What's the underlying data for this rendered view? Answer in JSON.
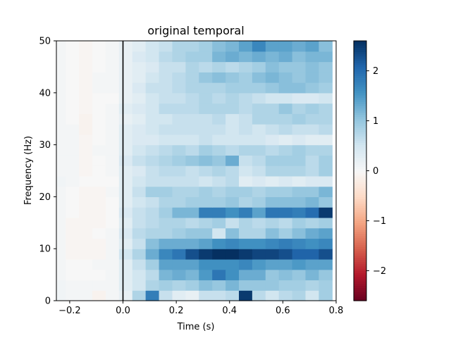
{
  "chart_data": {
    "type": "heatmap",
    "title": "original temporal",
    "xlabel": "Time (s)",
    "ylabel": "Frequency (Hz)",
    "xlim": [
      -0.25,
      0.8
    ],
    "ylim": [
      0,
      50
    ],
    "x_ticks": [
      -0.2,
      0.0,
      0.2,
      0.4,
      0.6,
      0.8
    ],
    "x_tick_labels": [
      "−0.2",
      "0.0",
      "0.2",
      "0.4",
      "0.6",
      "0.8"
    ],
    "y_ticks": [
      0,
      10,
      20,
      30,
      40,
      50
    ],
    "y_tick_labels": [
      "0",
      "10",
      "20",
      "30",
      "40",
      "50"
    ],
    "vline_at": 0.0,
    "colormap": "RdBu_r",
    "vmin": -2.6,
    "vmax": 2.6,
    "colorbar_ticks": [
      -2,
      -1,
      0,
      1,
      2
    ],
    "colorbar_tick_labels": [
      "−2",
      "−1",
      "0",
      "1",
      "2"
    ],
    "x_centers": [
      -0.24,
      -0.19,
      -0.14,
      -0.09,
      -0.04,
      0.01,
      0.06,
      0.11,
      0.16,
      0.21,
      0.26,
      0.31,
      0.36,
      0.41,
      0.46,
      0.51,
      0.56,
      0.61,
      0.66,
      0.71,
      0.76
    ],
    "y_centers": [
      1,
      3,
      5,
      7,
      9,
      11,
      13,
      15,
      17,
      19,
      21,
      23,
      25,
      27,
      29,
      31,
      33,
      35,
      37,
      39,
      41,
      43,
      45,
      47,
      49
    ],
    "values": [
      [
        0.1,
        0.05,
        0.05,
        -0.1,
        0.05,
        0.2,
        0.8,
        1.8,
        0.6,
        0.3,
        0.2,
        0.6,
        0.6,
        0.7,
        2.5,
        0.7,
        0.5,
        0.7,
        0.8,
        0.5,
        0.9
      ],
      [
        0.1,
        0.05,
        0.05,
        0.05,
        0.05,
        0.3,
        0.5,
        0.8,
        0.9,
        0.8,
        0.9,
        1.1,
        1.0,
        1.2,
        1.0,
        1.0,
        1.0,
        0.9,
        0.9,
        0.8,
        0.9
      ],
      [
        0.05,
        0.0,
        0.0,
        0.0,
        0.05,
        0.3,
        0.5,
        0.7,
        1.2,
        1.3,
        1.2,
        1.5,
        1.9,
        1.6,
        1.3,
        1.3,
        1.0,
        1.1,
        1.0,
        1.2,
        1.0
      ],
      [
        0.05,
        0.0,
        0.0,
        0.05,
        0.05,
        0.3,
        0.6,
        0.9,
        1.4,
        1.4,
        1.4,
        1.6,
        1.6,
        1.6,
        1.7,
        1.5,
        1.4,
        1.4,
        1.5,
        1.4,
        1.4
      ],
      [
        0.05,
        -0.05,
        -0.05,
        -0.05,
        0.05,
        0.5,
        0.8,
        1.3,
        1.7,
        1.9,
        2.3,
        2.5,
        2.6,
        2.6,
        2.5,
        2.4,
        2.4,
        2.3,
        2.1,
        2.1,
        2.3
      ],
      [
        0.05,
        -0.05,
        -0.05,
        -0.05,
        0.05,
        0.3,
        0.6,
        1.1,
        1.3,
        1.3,
        1.3,
        1.4,
        1.6,
        1.7,
        1.6,
        1.6,
        1.7,
        1.8,
        1.7,
        1.6,
        1.7
      ],
      [
        0.05,
        -0.05,
        -0.05,
        0.0,
        0.05,
        0.4,
        0.7,
        0.8,
        0.8,
        0.9,
        1.0,
        1.0,
        0.5,
        1.1,
        0.8,
        0.8,
        1.1,
        0.9,
        1.1,
        1.3,
        1.4
      ],
      [
        0.05,
        -0.05,
        -0.05,
        -0.05,
        0.0,
        0.3,
        0.6,
        0.7,
        0.8,
        0.8,
        0.7,
        0.8,
        0.9,
        0.6,
        0.8,
        0.7,
        0.8,
        0.7,
        0.9,
        0.8,
        0.9
      ],
      [
        0.05,
        0.0,
        -0.05,
        -0.05,
        0.0,
        0.4,
        0.6,
        0.7,
        0.9,
        1.2,
        1.2,
        1.8,
        1.8,
        1.6,
        1.8,
        1.4,
        1.9,
        1.9,
        1.8,
        2.0,
        2.5
      ],
      [
        0.05,
        0.0,
        -0.05,
        -0.05,
        0.0,
        0.3,
        0.5,
        0.6,
        0.8,
        0.8,
        0.9,
        0.9,
        0.9,
        1.0,
        0.8,
        0.9,
        1.1,
        1.1,
        1.1,
        1.2,
        1.0
      ],
      [
        0.05,
        0.0,
        -0.05,
        -0.05,
        0.05,
        0.3,
        0.6,
        0.9,
        0.9,
        0.8,
        0.8,
        0.9,
        0.8,
        0.9,
        0.9,
        0.8,
        0.9,
        0.9,
        1.0,
        1.0,
        1.2
      ],
      [
        0.1,
        0.05,
        0.0,
        0.0,
        0.0,
        0.3,
        0.5,
        0.6,
        0.6,
        0.6,
        0.6,
        0.5,
        0.6,
        0.7,
        0.3,
        0.4,
        0.3,
        0.4,
        0.3,
        0.4,
        0.4
      ],
      [
        0.05,
        0.05,
        -0.05,
        0.0,
        0.05,
        0.3,
        0.4,
        0.6,
        0.7,
        0.7,
        0.6,
        0.7,
        0.8,
        0.7,
        0.5,
        0.6,
        0.8,
        0.8,
        0.8,
        0.7,
        0.9
      ],
      [
        0.05,
        0.05,
        -0.05,
        0.0,
        0.05,
        0.4,
        0.6,
        0.7,
        0.8,
        0.9,
        1.0,
        1.1,
        1.0,
        1.3,
        0.6,
        0.7,
        0.9,
        0.9,
        0.9,
        0.7,
        0.9
      ],
      [
        0.05,
        0.05,
        -0.05,
        0.05,
        0.05,
        0.3,
        0.5,
        0.6,
        0.7,
        0.8,
        0.7,
        0.9,
        0.8,
        0.7,
        0.8,
        0.8,
        0.7,
        0.8,
        0.9,
        0.8,
        0.8
      ],
      [
        0.05,
        0.05,
        -0.05,
        0.0,
        0.05,
        0.3,
        0.4,
        0.4,
        0.5,
        0.5,
        0.5,
        0.6,
        0.5,
        0.5,
        0.5,
        0.5,
        0.4,
        0.3,
        0.4,
        0.3,
        0.3
      ],
      [
        0.05,
        0.05,
        -0.1,
        0.0,
        0.05,
        0.3,
        0.4,
        0.5,
        0.6,
        0.6,
        0.6,
        0.6,
        0.6,
        0.5,
        0.6,
        0.5,
        0.6,
        0.7,
        0.6,
        0.6,
        0.7
      ],
      [
        0.05,
        0.0,
        -0.1,
        0.0,
        0.05,
        0.2,
        0.3,
        0.5,
        0.5,
        0.6,
        0.6,
        0.6,
        0.7,
        0.5,
        0.6,
        0.8,
        0.8,
        0.8,
        0.9,
        0.8,
        0.8
      ],
      [
        0.05,
        0.0,
        -0.05,
        0.0,
        0.05,
        0.3,
        0.4,
        0.5,
        0.7,
        0.7,
        0.7,
        0.8,
        0.8,
        0.8,
        0.7,
        0.8,
        0.8,
        1.0,
        0.8,
        0.9,
        0.8
      ],
      [
        0.05,
        0.0,
        -0.05,
        0.0,
        0.0,
        0.2,
        0.3,
        0.5,
        0.6,
        0.6,
        0.7,
        0.8,
        0.7,
        0.8,
        0.7,
        0.6,
        0.5,
        0.5,
        0.4,
        0.4,
        0.5
      ],
      [
        0.05,
        0.0,
        -0.05,
        0.05,
        0.05,
        0.2,
        0.4,
        0.6,
        0.6,
        0.7,
        0.8,
        0.8,
        0.8,
        0.9,
        0.9,
        0.9,
        1.0,
        1.1,
        1.1,
        1.0,
        0.9
      ],
      [
        0.05,
        0.0,
        -0.05,
        0.05,
        0.05,
        0.2,
        0.3,
        0.5,
        0.6,
        0.7,
        0.8,
        1.0,
        1.1,
        1.0,
        0.9,
        1.1,
        1.2,
        1.1,
        1.0,
        1.1,
        1.0
      ],
      [
        0.05,
        0.0,
        -0.05,
        0.0,
        0.05,
        0.2,
        0.3,
        0.4,
        0.6,
        0.6,
        0.8,
        0.7,
        0.8,
        0.7,
        0.8,
        0.9,
        1.1,
        1.0,
        1.0,
        1.1,
        1.0
      ],
      [
        0.05,
        0.0,
        -0.05,
        0.0,
        0.05,
        0.2,
        0.4,
        0.5,
        0.7,
        0.8,
        0.9,
        0.9,
        1.2,
        1.3,
        1.2,
        1.3,
        1.2,
        1.3,
        1.1,
        1.2,
        1.2
      ],
      [
        0.05,
        0.0,
        -0.05,
        0.0,
        0.05,
        0.2,
        0.3,
        0.5,
        0.6,
        0.8,
        0.8,
        0.9,
        1.1,
        1.2,
        1.4,
        1.7,
        1.4,
        1.4,
        1.3,
        1.4,
        1.1
      ]
    ]
  }
}
